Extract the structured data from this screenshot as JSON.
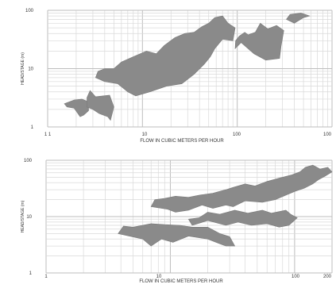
{
  "chart_data": [
    {
      "type": "area",
      "xlabel": "FLOW IN CUBIC METERS PER HOUR",
      "ylabel": "HEAD/STAGE (m)",
      "xscale": "log",
      "yscale": "log",
      "xlim": [
        1,
        1000
      ],
      "ylim": [
        1,
        100
      ],
      "x_tick_labels": [
        "1 1",
        "10",
        "100",
        "100"
      ],
      "y_tick_labels": [
        "1",
        "10",
        "100"
      ],
      "grid": true,
      "fill_color": "#8a8a8a",
      "grid_color": "#d9d9d9",
      "series": [
        {
          "points": [
            [
              1.6,
              2.2
            ],
            [
              1.9,
              2.1
            ],
            [
              2.2,
              1.5
            ],
            [
              2.4,
              1.6
            ],
            [
              2.7,
              1.9
            ],
            [
              2.7,
              2.7
            ],
            [
              2.3,
              3.0
            ],
            [
              1.9,
              2.9
            ],
            [
              1.5,
              2.5
            ]
          ]
        },
        {
          "points": [
            [
              2.6,
              2.2
            ],
            [
              3.0,
              2.0
            ],
            [
              3.5,
              1.7
            ],
            [
              4.3,
              1.5
            ],
            [
              4.6,
              1.3
            ],
            [
              5.0,
              2.2
            ],
            [
              4.5,
              3.5
            ],
            [
              3.2,
              3.3
            ],
            [
              2.8,
              4.2
            ],
            [
              2.6,
              3.2
            ]
          ]
        },
        {
          "points": [
            [
              3.2,
              7.0
            ],
            [
              4.0,
              6.0
            ],
            [
              5.5,
              5.5
            ],
            [
              7.0,
              4.0
            ],
            [
              8.5,
              3.4
            ],
            [
              12,
              4.0
            ],
            [
              18,
              5.0
            ],
            [
              26,
              5.5
            ],
            [
              35,
              8.0
            ],
            [
              45,
              12
            ],
            [
              52,
              16
            ],
            [
              58,
              22
            ],
            [
              70,
              32
            ],
            [
              90,
              30
            ],
            [
              95,
              50
            ],
            [
              80,
              60
            ],
            [
              70,
              80
            ],
            [
              58,
              75
            ],
            [
              50,
              60
            ],
            [
              42,
              52
            ],
            [
              35,
              42
            ],
            [
              28,
              40
            ],
            [
              22,
              34
            ],
            [
              17,
              25
            ],
            [
              14,
              18
            ],
            [
              11,
              20
            ],
            [
              8,
              16
            ],
            [
              6,
              13
            ],
            [
              5,
              10
            ],
            [
              4,
              10
            ],
            [
              3.4,
              9.0
            ]
          ]
        },
        {
          "points": [
            [
              95,
              22
            ],
            [
              110,
              28
            ],
            [
              150,
              18
            ],
            [
              200,
              14
            ],
            [
              280,
              15
            ],
            [
              290,
              24
            ],
            [
              310,
              45
            ],
            [
              260,
              55
            ],
            [
              210,
              48
            ],
            [
              175,
              60
            ],
            [
              155,
              42
            ],
            [
              130,
              38
            ],
            [
              120,
              42
            ],
            [
              105,
              36
            ],
            [
              96,
              30
            ]
          ]
        },
        {
          "points": [
            [
              330,
              70
            ],
            [
              400,
              60
            ],
            [
              500,
              75
            ],
            [
              580,
              80
            ],
            [
              470,
              90
            ],
            [
              360,
              85
            ]
          ]
        }
      ]
    },
    {
      "type": "area",
      "xlabel": "FLOW IN CUBIC METERS PER HOUR",
      "ylabel": "HEAD/STAGE (m)",
      "xscale": "log",
      "yscale": "log",
      "xlim": [
        1,
        200
      ],
      "ylim": [
        1,
        100
      ],
      "x_tick_labels": [
        "1",
        "10",
        "100",
        "200"
      ],
      "y_tick_labels": [
        "1",
        "10",
        "100"
      ],
      "grid": true,
      "fill_color": "#8a8a8a",
      "grid_color": "#d9d9d9",
      "series": [
        {
          "points": [
            [
              3.8,
              5.0
            ],
            [
              6.0,
              4.0
            ],
            [
              7.0,
              3.0
            ],
            [
              8.5,
              4.0
            ],
            [
              10.5,
              3.5
            ],
            [
              14,
              4.5
            ],
            [
              20,
              4.0
            ],
            [
              25,
              3.3
            ],
            [
              28,
              3.0
            ],
            [
              33,
              3.0
            ],
            [
              30,
              4.4
            ],
            [
              25,
              5.0
            ],
            [
              20,
              6.5
            ],
            [
              15,
              6.5
            ],
            [
              12,
              7.0
            ],
            [
              9,
              7.2
            ],
            [
              7,
              7.5
            ],
            [
              5,
              6.5
            ],
            [
              4.2,
              6.8
            ]
          ]
        },
        {
          "points": [
            [
              15,
              7.0
            ],
            [
              20,
              8.5
            ],
            [
              28,
              7.0
            ],
            [
              35,
              8.0
            ],
            [
              45,
              7.0
            ],
            [
              60,
              7.5
            ],
            [
              75,
              6.5
            ],
            [
              90,
              7.0
            ],
            [
              105,
              9.5
            ],
            [
              93,
              11
            ],
            [
              85,
              13
            ],
            [
              65,
              11.5
            ],
            [
              55,
              13
            ],
            [
              42,
              11.5
            ],
            [
              33,
              13
            ],
            [
              25,
              11
            ],
            [
              20,
              12
            ],
            [
              17,
              9.5
            ],
            [
              14,
              9.0
            ]
          ]
        },
        {
          "points": [
            [
              7.0,
              15
            ],
            [
              9.5,
              13.5
            ],
            [
              11,
              12
            ],
            [
              14,
              13
            ],
            [
              18,
              16
            ],
            [
              22,
              14
            ],
            [
              28,
              16
            ],
            [
              32,
              15
            ],
            [
              40,
              19
            ],
            [
              55,
              18
            ],
            [
              70,
              20
            ],
            [
              85,
              24
            ],
            [
              100,
              28
            ],
            [
              120,
              32
            ],
            [
              140,
              38
            ],
            [
              155,
              45
            ],
            [
              175,
              52
            ],
            [
              200,
              62
            ],
            [
              185,
              75
            ],
            [
              160,
              70
            ],
            [
              140,
              82
            ],
            [
              122,
              75
            ],
            [
              110,
              62
            ],
            [
              95,
              55
            ],
            [
              75,
              48
            ],
            [
              60,
              42
            ],
            [
              48,
              35
            ],
            [
              40,
              38
            ],
            [
              32,
              33
            ],
            [
              28,
              30
            ],
            [
              22,
              26
            ],
            [
              17,
              24
            ],
            [
              14,
              22
            ],
            [
              11,
              23
            ],
            [
              9,
              21
            ],
            [
              7.5,
              20
            ]
          ]
        }
      ]
    }
  ]
}
